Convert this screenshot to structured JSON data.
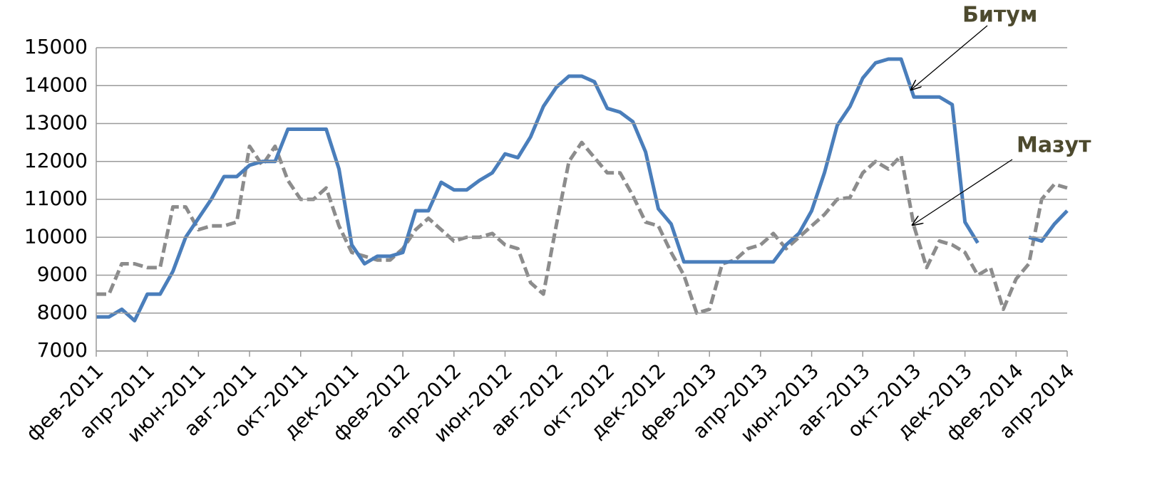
{
  "chart_data": {
    "type": "line",
    "categories": [
      "фев-2011",
      null,
      null,
      null,
      "апр-2011",
      null,
      null,
      null,
      "июн-2011",
      null,
      null,
      null,
      "авг-2011",
      null,
      null,
      null,
      "окт-2011",
      null,
      null,
      null,
      "дек-2011",
      null,
      null,
      null,
      "фев-2012",
      null,
      null,
      null,
      "апр-2012",
      null,
      null,
      null,
      "июн-2012",
      null,
      null,
      null,
      "авг-2012",
      null,
      null,
      null,
      "окт-2012",
      null,
      null,
      null,
      "дек-2012",
      null,
      null,
      null,
      "фев-2013",
      null,
      null,
      null,
      "апр-2013",
      null,
      null,
      null,
      "июн-2013",
      null,
      null,
      null,
      "авг-2013",
      null,
      null,
      null,
      "окт-2013",
      null,
      null,
      null,
      "дек-2013",
      null,
      null,
      null,
      "фев-2014",
      null,
      null,
      null,
      "апр-2014"
    ],
    "series": [
      {
        "name": "Битум",
        "color": "#4a7ebb",
        "dashed": false,
        "values": [
          7900,
          7900,
          8100,
          7800,
          8500,
          8500,
          9100,
          10000,
          10500,
          11000,
          11600,
          11600,
          11900,
          12000,
          12000,
          12850,
          12850,
          12850,
          12850,
          11800,
          9800,
          9300,
          9500,
          9500,
          9600,
          10700,
          10700,
          11450,
          11250,
          11250,
          11500,
          11700,
          12200,
          12100,
          12650,
          13450,
          13950,
          14250,
          14250,
          14100,
          13400,
          13300,
          13050,
          12250,
          10750,
          10350,
          9350,
          9350,
          9350,
          9350,
          9350,
          9350,
          9350,
          9350,
          9800,
          10100,
          10700,
          11700,
          12950,
          13450,
          14200,
          14600,
          14700,
          14700,
          13700,
          13700,
          13700,
          13500,
          10400,
          9850,
          null,
          null,
          null,
          10000,
          9900,
          10350,
          10700
        ]
      },
      {
        "name": "Мазут",
        "color": "#8c8c8c",
        "dashed": true,
        "values": [
          8500,
          8500,
          9300,
          9300,
          9200,
          9200,
          10800,
          10800,
          10200,
          10300,
          10300,
          10400,
          12400,
          11900,
          12400,
          11500,
          11000,
          11000,
          11300,
          10300,
          9600,
          9500,
          9400,
          9400,
          9700,
          10200,
          10500,
          10200,
          9900,
          10000,
          10000,
          10100,
          9800,
          9700,
          8800,
          8500,
          10300,
          12000,
          12500,
          12100,
          11700,
          11700,
          11100,
          10400,
          10300,
          9600,
          9000,
          8000,
          8100,
          9300,
          9400,
          9700,
          9800,
          10100,
          9700,
          10000,
          10300,
          10600,
          11000,
          11050,
          11700,
          12000,
          11800,
          12150,
          10300,
          9200,
          9900,
          9800,
          9600,
          9000,
          9200,
          8100,
          8900,
          9300,
          11000,
          11400,
          11300
        ]
      }
    ],
    "ylim": [
      7000,
      15000
    ],
    "yticks": [
      7000,
      8000,
      9000,
      10000,
      11000,
      12000,
      13000,
      14000,
      15000
    ],
    "grid": true
  }
}
